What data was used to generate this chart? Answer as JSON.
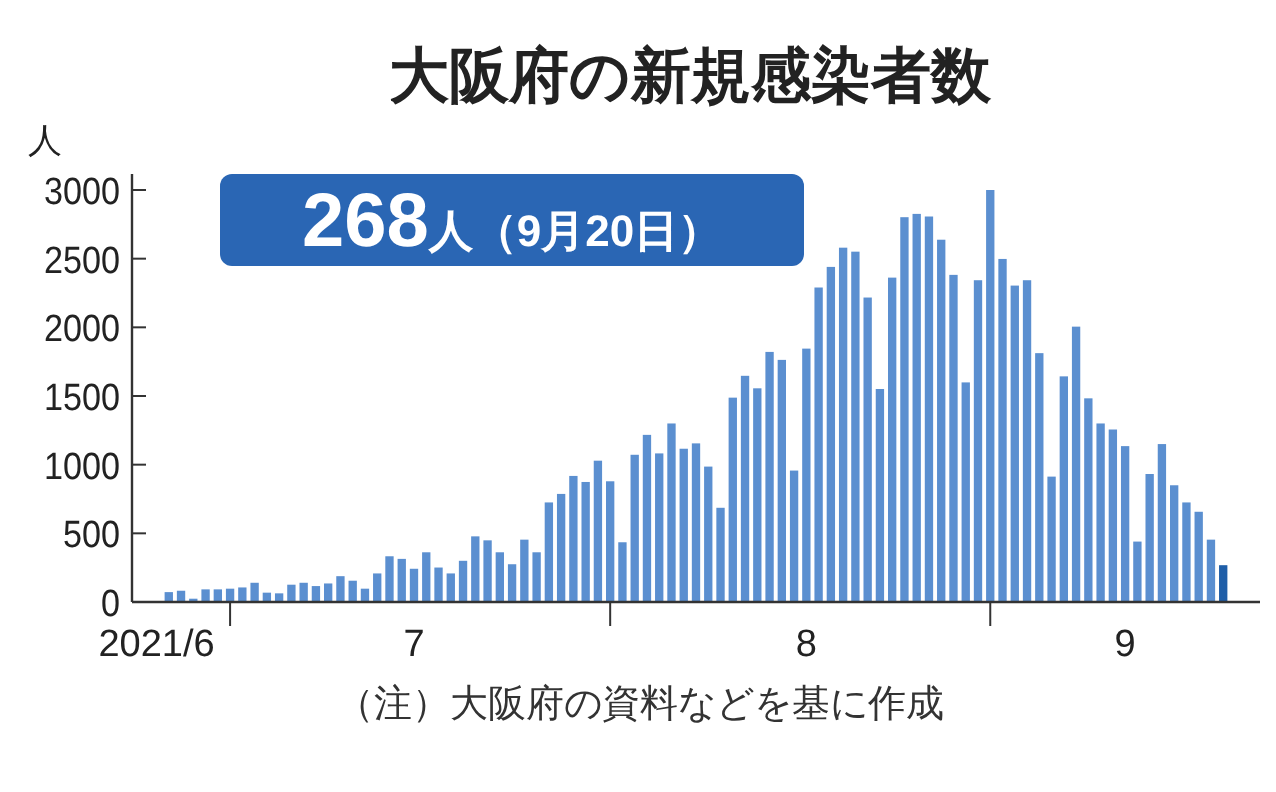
{
  "chart_data": {
    "type": "bar",
    "title": "大阪府の新規感染者数",
    "ylabel": "人",
    "annotations": [
      "268人（9月20日）",
      "（注）大阪府の資料などを基に作成"
    ],
    "x": [
      "2021-06-26",
      "2021-06-27",
      "2021-06-28",
      "2021-06-29",
      "2021-06-30",
      "2021-07-01",
      "2021-07-02",
      "2021-07-03",
      "2021-07-04",
      "2021-07-05",
      "2021-07-06",
      "2021-07-07",
      "2021-07-08",
      "2021-07-09",
      "2021-07-10",
      "2021-07-11",
      "2021-07-12",
      "2021-07-13",
      "2021-07-14",
      "2021-07-15",
      "2021-07-16",
      "2021-07-17",
      "2021-07-18",
      "2021-07-19",
      "2021-07-20",
      "2021-07-21",
      "2021-07-22",
      "2021-07-23",
      "2021-07-24",
      "2021-07-25",
      "2021-07-26",
      "2021-07-27",
      "2021-07-28",
      "2021-07-29",
      "2021-07-30",
      "2021-07-31",
      "2021-08-01",
      "2021-08-02",
      "2021-08-03",
      "2021-08-04",
      "2021-08-05",
      "2021-08-06",
      "2021-08-07",
      "2021-08-08",
      "2021-08-09",
      "2021-08-10",
      "2021-08-11",
      "2021-08-12",
      "2021-08-13",
      "2021-08-14",
      "2021-08-15",
      "2021-08-16",
      "2021-08-17",
      "2021-08-18",
      "2021-08-19",
      "2021-08-20",
      "2021-08-21",
      "2021-08-22",
      "2021-08-23",
      "2021-08-24",
      "2021-08-25",
      "2021-08-26",
      "2021-08-27",
      "2021-08-28",
      "2021-08-29",
      "2021-08-30",
      "2021-08-31",
      "2021-09-01",
      "2021-09-02",
      "2021-09-03",
      "2021-09-04",
      "2021-09-05",
      "2021-09-06",
      "2021-09-07",
      "2021-09-08",
      "2021-09-09",
      "2021-09-10",
      "2021-09-11",
      "2021-09-12",
      "2021-09-13",
      "2021-09-14",
      "2021-09-15",
      "2021-09-16",
      "2021-09-17",
      "2021-09-18",
      "2021-09-19",
      "2021-09-20"
    ],
    "values": [
      72,
      82,
      24,
      92,
      92,
      97,
      106,
      140,
      68,
      63,
      126,
      140,
      116,
      135,
      188,
      155,
      97,
      208,
      333,
      314,
      242,
      362,
      251,
      208,
      300,
      478,
      449,
      362,
      275,
      454,
      362,
      725,
      787,
      918,
      874,
      1029,
      879,
      435,
      1072,
      1217,
      1082,
      1300,
      1116,
      1155,
      986,
      686,
      1488,
      1647,
      1556,
      1821,
      1763,
      957,
      1845,
      2290,
      2440,
      2580,
      2551,
      2217,
      1551,
      2362,
      2802,
      2826,
      2807,
      2638,
      2382,
      1599,
      2343,
      3000,
      2498,
      2304,
      2343,
      1812,
      913,
      1643,
      2005,
      1483,
      1300,
      1256,
      1135,
      440,
      932,
      1150,
      850,
      725,
      657,
      454,
      268
    ],
    "colors": [
      "#5b8fd0",
      "#5b8fd0",
      "#5b8fd0",
      "#5b8fd0",
      "#5b8fd0",
      "#5b8fd0",
      "#5b8fd0",
      "#5b8fd0",
      "#5b8fd0",
      "#5b8fd0",
      "#5b8fd0",
      "#5b8fd0",
      "#5b8fd0",
      "#5b8fd0",
      "#5b8fd0",
      "#5b8fd0",
      "#5b8fd0",
      "#5b8fd0",
      "#5b8fd0",
      "#5b8fd0",
      "#5b8fd0",
      "#5b8fd0",
      "#5b8fd0",
      "#5b8fd0",
      "#5b8fd0",
      "#5b8fd0",
      "#5b8fd0",
      "#5b8fd0",
      "#5b8fd0",
      "#5b8fd0",
      "#5b8fd0",
      "#5b8fd0",
      "#5b8fd0",
      "#5b8fd0",
      "#5b8fd0",
      "#5b8fd0",
      "#5b8fd0",
      "#5b8fd0",
      "#5b8fd0",
      "#5b8fd0",
      "#5b8fd0",
      "#5b8fd0",
      "#5b8fd0",
      "#5b8fd0",
      "#5b8fd0",
      "#5b8fd0",
      "#5b8fd0",
      "#5b8fd0",
      "#5b8fd0",
      "#5b8fd0",
      "#5b8fd0",
      "#5b8fd0",
      "#5b8fd0",
      "#5b8fd0",
      "#5b8fd0",
      "#5b8fd0",
      "#5b8fd0",
      "#5b8fd0",
      "#5b8fd0",
      "#5b8fd0",
      "#5b8fd0",
      "#5b8fd0",
      "#5b8fd0",
      "#5b8fd0",
      "#5b8fd0",
      "#5b8fd0",
      "#5b8fd0",
      "#5b8fd0",
      "#5b8fd0",
      "#5b8fd0",
      "#5b8fd0",
      "#5b8fd0",
      "#5b8fd0",
      "#5b8fd0",
      "#5b8fd0",
      "#5b8fd0",
      "#5b8fd0",
      "#5b8fd0",
      "#5b8fd0",
      "#5b8fd0",
      "#5b8fd0",
      "#5b8fd0",
      "#5b8fd0",
      "#5b8fd0",
      "#5b8fd0",
      "#5b8fd0",
      "#1f5ea8"
    ],
    "xlim": [
      "2021-06-23",
      "2021-09-23"
    ],
    "xticks": [
      {
        "value": "2021-06-25",
        "label": "2021/6"
      },
      {
        "value": "2021-07-01",
        "label": null
      },
      {
        "value": "2021-07-16",
        "label": "7"
      },
      {
        "value": "2021-08-01",
        "label": null
      },
      {
        "value": "2021-08-17",
        "label": "8"
      },
      {
        "value": "2021-09-01",
        "label": null
      },
      {
        "value": "2021-09-12",
        "label": "9"
      }
    ],
    "ylim": [
      0,
      3000
    ],
    "yticks": [
      0,
      500,
      1000,
      1500,
      2000,
      2500,
      3000
    ],
    "grid": false
  }
}
